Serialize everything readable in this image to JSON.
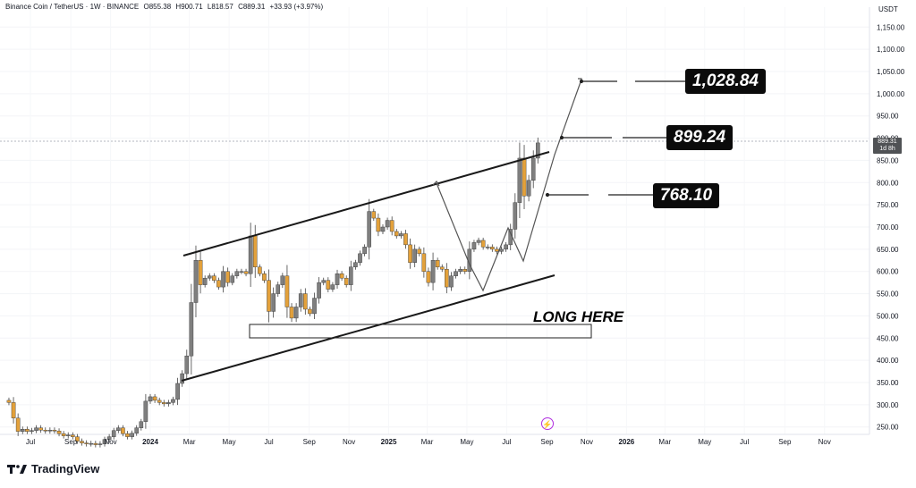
{
  "header": {
    "symbol": "Binance Coin / TetherUS · 1W · BINANCE",
    "open": "O855.38",
    "high": "H900.71",
    "low": "L818.57",
    "close": "C889.31",
    "change": "+33.93 (+3.97%)"
  },
  "y_unit": "USDT",
  "last_price": {
    "value": "889.31",
    "countdown": "1d 8h"
  },
  "brand": {
    "name": "TradingView",
    "logo_icon": "tradingview-logo-icon"
  },
  "annotations": {
    "long_here": "LONG HERE",
    "target_high": "1,028.84",
    "target_mid": "899.24",
    "target_low": "768.10"
  },
  "event_icon": "lightning-icon",
  "colors": {
    "up_candle": "#7f7f7f",
    "down_candle": "#e3a13b",
    "channel": "#1a1a1a",
    "projection": "#555555",
    "tag_bg": "#0b0b0b"
  },
  "chart_data": {
    "type": "candlestick",
    "ylim": [
      230,
      1200
    ],
    "y_ticks": [
      250,
      300,
      350,
      400,
      450,
      500,
      550,
      600,
      650,
      700,
      750,
      800,
      850,
      900,
      950,
      1000,
      1050,
      1100,
      1150
    ],
    "y_tick_labels": [
      "250.00",
      "300.00",
      "350.00",
      "400.00",
      "450.00",
      "500.00",
      "550.00",
      "600.00",
      "650.00",
      "700.00",
      "750.00",
      "800.00",
      "850.00",
      "900.00",
      "950.00",
      "1,000.00",
      "1,050.00",
      "1,100.00",
      "1,150.00"
    ],
    "x_tick_labels": [
      {
        "label": "Jul",
        "date": "2023-07-01",
        "bold": false
      },
      {
        "label": "Sep",
        "date": "2023-09-01",
        "bold": false
      },
      {
        "label": "Nov",
        "date": "2023-11-01",
        "bold": false
      },
      {
        "label": "2024",
        "date": "2024-01-01",
        "bold": true
      },
      {
        "label": "Mar",
        "date": "2024-03-01",
        "bold": false
      },
      {
        "label": "May",
        "date": "2024-05-01",
        "bold": false
      },
      {
        "label": "Jul",
        "date": "2024-07-01",
        "bold": false
      },
      {
        "label": "Sep",
        "date": "2024-09-01",
        "bold": false
      },
      {
        "label": "Nov",
        "date": "2024-11-01",
        "bold": false
      },
      {
        "label": "2025",
        "date": "2025-01-01",
        "bold": true
      },
      {
        "label": "Mar",
        "date": "2025-03-01",
        "bold": false
      },
      {
        "label": "May",
        "date": "2025-05-01",
        "bold": false
      },
      {
        "label": "Jul",
        "date": "2025-07-01",
        "bold": false
      },
      {
        "label": "Sep",
        "date": "2025-09-01",
        "bold": false
      },
      {
        "label": "Nov",
        "date": "2025-11-01",
        "bold": false
      },
      {
        "label": "2026",
        "date": "2026-01-01",
        "bold": true
      },
      {
        "label": "Mar",
        "date": "2026-03-01",
        "bold": false
      },
      {
        "label": "May",
        "date": "2026-05-01",
        "bold": false
      },
      {
        "label": "Jul",
        "date": "2026-07-01",
        "bold": false
      },
      {
        "label": "Sep",
        "date": "2026-09-01",
        "bold": false
      },
      {
        "label": "Nov",
        "date": "2026-11-01",
        "bold": false
      }
    ],
    "series_close": [
      {
        "date": "2023-05-29",
        "close": 305
      },
      {
        "date": "2023-06-05",
        "close": 270
      },
      {
        "date": "2023-06-12",
        "close": 240
      },
      {
        "date": "2023-06-19",
        "close": 245
      },
      {
        "date": "2023-06-26",
        "close": 240
      },
      {
        "date": "2023-07-03",
        "close": 242
      },
      {
        "date": "2023-07-10",
        "close": 248
      },
      {
        "date": "2023-07-17",
        "close": 243
      },
      {
        "date": "2023-07-24",
        "close": 241
      },
      {
        "date": "2023-07-31",
        "close": 243
      },
      {
        "date": "2023-08-07",
        "close": 241
      },
      {
        "date": "2023-08-14",
        "close": 235
      },
      {
        "date": "2023-08-21",
        "close": 230
      },
      {
        "date": "2023-08-28",
        "close": 232
      },
      {
        "date": "2023-09-04",
        "close": 228
      },
      {
        "date": "2023-09-11",
        "close": 218
      },
      {
        "date": "2023-09-18",
        "close": 214
      },
      {
        "date": "2023-09-25",
        "close": 212
      },
      {
        "date": "2023-10-02",
        "close": 213
      },
      {
        "date": "2023-10-09",
        "close": 210
      },
      {
        "date": "2023-10-16",
        "close": 212
      },
      {
        "date": "2023-10-23",
        "close": 222
      },
      {
        "date": "2023-10-30",
        "close": 228
      },
      {
        "date": "2023-11-06",
        "close": 242
      },
      {
        "date": "2023-11-13",
        "close": 248
      },
      {
        "date": "2023-11-20",
        "close": 235
      },
      {
        "date": "2023-11-27",
        "close": 228
      },
      {
        "date": "2023-12-04",
        "close": 236
      },
      {
        "date": "2023-12-11",
        "close": 248
      },
      {
        "date": "2023-12-18",
        "close": 262
      },
      {
        "date": "2023-12-25",
        "close": 308
      },
      {
        "date": "2024-01-01",
        "close": 318
      },
      {
        "date": "2024-01-08",
        "close": 310
      },
      {
        "date": "2024-01-15",
        "close": 305
      },
      {
        "date": "2024-01-22",
        "close": 302
      },
      {
        "date": "2024-01-29",
        "close": 305
      },
      {
        "date": "2024-02-05",
        "close": 312
      },
      {
        "date": "2024-02-12",
        "close": 348
      },
      {
        "date": "2024-02-19",
        "close": 370
      },
      {
        "date": "2024-02-26",
        "close": 410
      },
      {
        "date": "2024-03-04",
        "close": 530
      },
      {
        "date": "2024-03-11",
        "close": 625
      },
      {
        "date": "2024-03-18",
        "close": 570
      },
      {
        "date": "2024-03-25",
        "close": 585
      },
      {
        "date": "2024-04-01",
        "close": 590
      },
      {
        "date": "2024-04-08",
        "close": 580
      },
      {
        "date": "2024-04-15",
        "close": 565
      },
      {
        "date": "2024-04-22",
        "close": 600
      },
      {
        "date": "2024-04-29",
        "close": 575
      },
      {
        "date": "2024-05-06",
        "close": 590
      },
      {
        "date": "2024-05-13",
        "close": 600
      },
      {
        "date": "2024-05-20",
        "close": 600
      },
      {
        "date": "2024-05-27",
        "close": 595
      },
      {
        "date": "2024-06-03",
        "close": 680
      },
      {
        "date": "2024-06-10",
        "close": 610
      },
      {
        "date": "2024-06-17",
        "close": 595
      },
      {
        "date": "2024-06-24",
        "close": 580
      },
      {
        "date": "2024-07-01",
        "close": 510
      },
      {
        "date": "2024-07-08",
        "close": 550
      },
      {
        "date": "2024-07-15",
        "close": 570
      },
      {
        "date": "2024-07-22",
        "close": 590
      },
      {
        "date": "2024-07-29",
        "close": 520
      },
      {
        "date": "2024-08-05",
        "close": 495
      },
      {
        "date": "2024-08-12",
        "close": 520
      },
      {
        "date": "2024-08-19",
        "close": 550
      },
      {
        "date": "2024-08-26",
        "close": 515
      },
      {
        "date": "2024-09-02",
        "close": 505
      },
      {
        "date": "2024-09-09",
        "close": 540
      },
      {
        "date": "2024-09-16",
        "close": 575
      },
      {
        "date": "2024-09-23",
        "close": 580
      },
      {
        "date": "2024-09-30",
        "close": 560
      },
      {
        "date": "2024-10-07",
        "close": 570
      },
      {
        "date": "2024-10-14",
        "close": 595
      },
      {
        "date": "2024-10-21",
        "close": 585
      },
      {
        "date": "2024-10-28",
        "close": 570
      },
      {
        "date": "2024-11-04",
        "close": 610
      },
      {
        "date": "2024-11-11",
        "close": 620
      },
      {
        "date": "2024-11-18",
        "close": 640
      },
      {
        "date": "2024-11-25",
        "close": 655
      },
      {
        "date": "2024-12-02",
        "close": 735
      },
      {
        "date": "2024-12-09",
        "close": 720
      },
      {
        "date": "2024-12-16",
        "close": 690
      },
      {
        "date": "2024-12-23",
        "close": 700
      },
      {
        "date": "2024-12-30",
        "close": 715
      },
      {
        "date": "2025-01-06",
        "close": 690
      },
      {
        "date": "2025-01-13",
        "close": 680
      },
      {
        "date": "2025-01-20",
        "close": 685
      },
      {
        "date": "2025-01-27",
        "close": 660
      },
      {
        "date": "2025-02-03",
        "close": 620
      },
      {
        "date": "2025-02-10",
        "close": 650
      },
      {
        "date": "2025-02-17",
        "close": 640
      },
      {
        "date": "2025-02-24",
        "close": 600
      },
      {
        "date": "2025-03-03",
        "close": 575
      },
      {
        "date": "2025-03-10",
        "close": 625
      },
      {
        "date": "2025-03-17",
        "close": 610
      },
      {
        "date": "2025-03-24",
        "close": 605
      },
      {
        "date": "2025-03-31",
        "close": 565
      },
      {
        "date": "2025-04-07",
        "close": 590
      },
      {
        "date": "2025-04-14",
        "close": 600
      },
      {
        "date": "2025-04-21",
        "close": 605
      },
      {
        "date": "2025-04-28",
        "close": 600
      },
      {
        "date": "2025-05-05",
        "close": 650
      },
      {
        "date": "2025-05-12",
        "close": 665
      },
      {
        "date": "2025-05-19",
        "close": 670
      },
      {
        "date": "2025-05-26",
        "close": 655
      },
      {
        "date": "2025-06-02",
        "close": 655
      },
      {
        "date": "2025-06-09",
        "close": 650
      },
      {
        "date": "2025-06-16",
        "close": 645
      },
      {
        "date": "2025-06-23",
        "close": 650
      },
      {
        "date": "2025-06-30",
        "close": 660
      },
      {
        "date": "2025-07-07",
        "close": 695
      },
      {
        "date": "2025-07-14",
        "close": 755
      },
      {
        "date": "2025-07-21",
        "close": 855
      },
      {
        "date": "2025-07-28",
        "close": 770
      },
      {
        "date": "2025-08-04",
        "close": 805
      },
      {
        "date": "2025-08-11",
        "close": 855
      },
      {
        "date": "2025-08-18",
        "close": 889.31
      }
    ]
  }
}
